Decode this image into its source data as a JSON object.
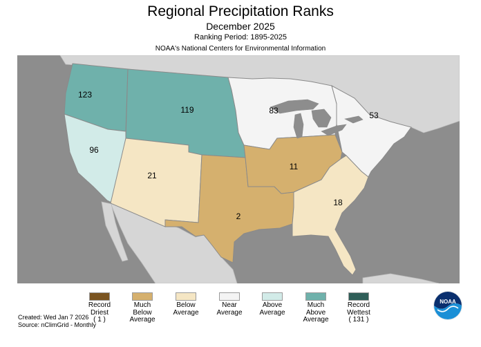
{
  "header": {
    "title": "Regional Precipitation Ranks",
    "subtitle": "December 2025",
    "period": "Ranking Period: 1895-2025",
    "org": "NOAA's National Centers for Environmental Information"
  },
  "regions": [
    {
      "id": "northwest",
      "rank": "123",
      "category": "much-above",
      "color": "#6fb1ab"
    },
    {
      "id": "west-north-central",
      "rank": "119",
      "category": "much-above",
      "color": "#6fb1ab"
    },
    {
      "id": "west",
      "rank": "96",
      "category": "above",
      "color": "#d2ebe8"
    },
    {
      "id": "southwest",
      "rank": "21",
      "category": "below",
      "color": "#f5e6c4"
    },
    {
      "id": "south",
      "rank": "2",
      "category": "much-below",
      "color": "#d5b06e"
    },
    {
      "id": "east-north-central",
      "rank": "83",
      "category": "near",
      "color": "#f4f4f4"
    },
    {
      "id": "central",
      "rank": "11",
      "category": "much-below",
      "color": "#d5b06e"
    },
    {
      "id": "northeast",
      "rank": "53",
      "category": "near",
      "color": "#f4f4f4"
    },
    {
      "id": "southeast",
      "rank": "18",
      "category": "below",
      "color": "#f5e6c4"
    }
  ],
  "legend": [
    {
      "lines": [
        "Record",
        "Driest",
        "( 1 )"
      ],
      "color": "#7a5420"
    },
    {
      "lines": [
        "Much",
        "Below",
        "Average"
      ],
      "color": "#d5b06e"
    },
    {
      "lines": [
        "Below",
        "Average"
      ],
      "color": "#f5e6c4"
    },
    {
      "lines": [
        "Near",
        "Average"
      ],
      "color": "#f4f4f4"
    },
    {
      "lines": [
        "Above",
        "Average"
      ],
      "color": "#d2ebe8"
    },
    {
      "lines": [
        "Much",
        "Above",
        "Average"
      ],
      "color": "#6fb1ab"
    },
    {
      "lines": [
        "Record",
        "Wettest",
        "( 131 )"
      ],
      "color": "#2f5e58"
    }
  ],
  "footer": {
    "created": "Created: Wed Jan  7 2026",
    "source": "Source: nClimGrid - Monthly"
  },
  "logo_text": "NOAA",
  "colors": {
    "ocean": "#8d8d8d",
    "land_outside": "#d6d6d6",
    "border": "#8a8a8a"
  }
}
